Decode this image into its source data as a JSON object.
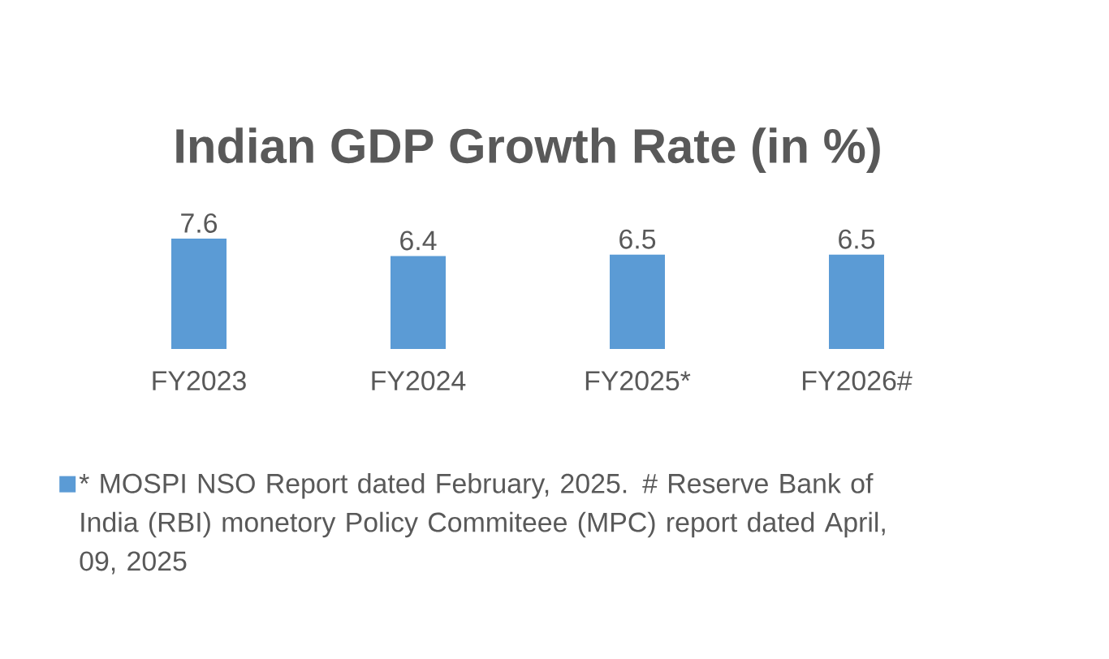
{
  "chart_data": {
    "type": "bar",
    "title": "Indian GDP Growth Rate (in %)",
    "categories": [
      "FY2023",
      "FY2024",
      "FY2025*",
      "FY2026#"
    ],
    "series": [
      {
        "name": "* MOSPI NSO Report dated February, 2025. # Reserve Bank of India (RBI) monetory Policy Commiteee (MPC) report dated April, 09, 2025",
        "color": "#5b9bd5",
        "values": [
          7.6,
          6.4,
          6.5,
          6.5
        ]
      }
    ],
    "data_labels": true,
    "legend": "bottom"
  }
}
